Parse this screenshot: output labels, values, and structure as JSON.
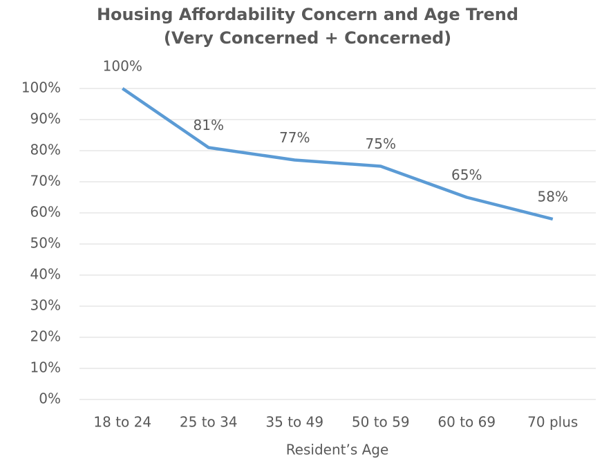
{
  "chart_data": {
    "type": "line",
    "title": "Housing Affordability Concern and Age Trend",
    "subtitle": "(Very Concerned + Concerned)",
    "x_label": "Resident’s Age",
    "categories": [
      "18 to 24",
      "25 to 34",
      "35 to 49",
      "50 to 59",
      "60 to 69",
      "70 plus"
    ],
    "values": [
      100,
      81,
      77,
      75,
      65,
      58
    ],
    "value_labels": [
      "100%",
      "81%",
      "77%",
      "75%",
      "65%",
      "58%"
    ],
    "color": "#5b9bd5",
    "ylim": [
      0,
      100
    ],
    "yticks": [
      {
        "value": 0,
        "label": "0%"
      },
      {
        "value": 10,
        "label": "10%"
      },
      {
        "value": 20,
        "label": "20%"
      },
      {
        "value": 30,
        "label": "30%"
      },
      {
        "value": 40,
        "label": "40%"
      },
      {
        "value": 50,
        "label": "50%"
      },
      {
        "value": 60,
        "label": "60%"
      },
      {
        "value": 70,
        "label": "70%"
      },
      {
        "value": 80,
        "label": "80%"
      },
      {
        "value": 90,
        "label": "90%"
      },
      {
        "value": 100,
        "label": "100%"
      }
    ],
    "grid": true
  }
}
